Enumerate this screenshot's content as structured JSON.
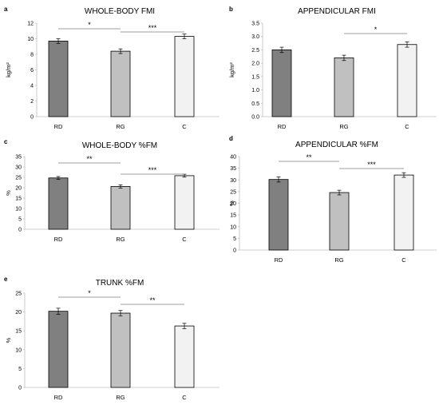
{
  "chart_data": [
    {
      "type": "bar",
      "panel": "a",
      "title": "WHOLE-BODY FMI",
      "ylabel": "kg/m²",
      "ylim": [
        0,
        12
      ],
      "yticks": [
        0,
        2,
        4,
        6,
        8,
        10,
        12
      ],
      "categories": [
        "RD",
        "RG",
        "C"
      ],
      "values": [
        9.7,
        8.4,
        10.3
      ],
      "errors": [
        0.3,
        0.3,
        0.3
      ],
      "bar_colors": [
        "#808080",
        "#c0c0c0",
        "#f2f2f2"
      ],
      "significance": [
        {
          "from": 0,
          "to": 1,
          "label": "*"
        },
        {
          "from": 1,
          "to": 2,
          "label": "***"
        }
      ]
    },
    {
      "type": "bar",
      "panel": "b",
      "title": "APPENDICULAR FMI",
      "ylabel": "kg/m²",
      "ylim": [
        0,
        3.5
      ],
      "yticks": [
        "0.0",
        "0.5",
        "1.0",
        "1.5",
        "2.0",
        "2.5",
        "3.0",
        "3.5"
      ],
      "categories": [
        "RD",
        "RG",
        "C"
      ],
      "values": [
        2.5,
        2.2,
        2.7
      ],
      "errors": [
        0.1,
        0.1,
        0.1
      ],
      "bar_colors": [
        "#808080",
        "#c0c0c0",
        "#f2f2f2"
      ],
      "significance": [
        {
          "from": 1,
          "to": 2,
          "label": "*"
        }
      ]
    },
    {
      "type": "bar",
      "panel": "c",
      "title": "WHOLE-BODY %FM",
      "ylabel": "%",
      "ylim": [
        0,
        35
      ],
      "yticks": [
        0,
        5,
        10,
        15,
        20,
        25,
        30,
        35
      ],
      "categories": [
        "RD",
        "RG",
        "C"
      ],
      "values": [
        24.7,
        20.6,
        25.8
      ],
      "errors": [
        0.7,
        0.8,
        0.7
      ],
      "bar_colors": [
        "#808080",
        "#c0c0c0",
        "#f2f2f2"
      ],
      "significance": [
        {
          "from": 0,
          "to": 1,
          "label": "**"
        },
        {
          "from": 1,
          "to": 2,
          "label": "***"
        }
      ]
    },
    {
      "type": "bar",
      "panel": "d",
      "title": "APPENDICULAR %FM",
      "ylabel": "%",
      "ylim": [
        0,
        40
      ],
      "yticks": [
        0,
        5,
        10,
        15,
        20,
        25,
        30,
        35,
        40
      ],
      "categories": [
        "RD",
        "RG",
        "C"
      ],
      "values": [
        30.2,
        24.6,
        32.1
      ],
      "errors": [
        1.1,
        1.0,
        1.0
      ],
      "bar_colors": [
        "#808080",
        "#c0c0c0",
        "#f2f2f2"
      ],
      "significance": [
        {
          "from": 0,
          "to": 1,
          "label": "**"
        },
        {
          "from": 1,
          "to": 2,
          "label": "***"
        }
      ]
    },
    {
      "type": "bar",
      "panel": "e",
      "title": "TRUNK %FM",
      "ylabel": "%",
      "ylim": [
        0,
        25
      ],
      "yticks": [
        0,
        5,
        10,
        15,
        20,
        25
      ],
      "categories": [
        "RD",
        "RG",
        "C"
      ],
      "values": [
        20.2,
        19.7,
        16.3
      ],
      "errors": [
        0.8,
        0.7,
        0.7
      ],
      "bar_colors": [
        "#808080",
        "#c0c0c0",
        "#f2f2f2"
      ],
      "significance": [
        {
          "from": 0,
          "to": 1,
          "label": "*"
        },
        {
          "from": 1,
          "to": 2,
          "label": "**"
        }
      ]
    }
  ]
}
